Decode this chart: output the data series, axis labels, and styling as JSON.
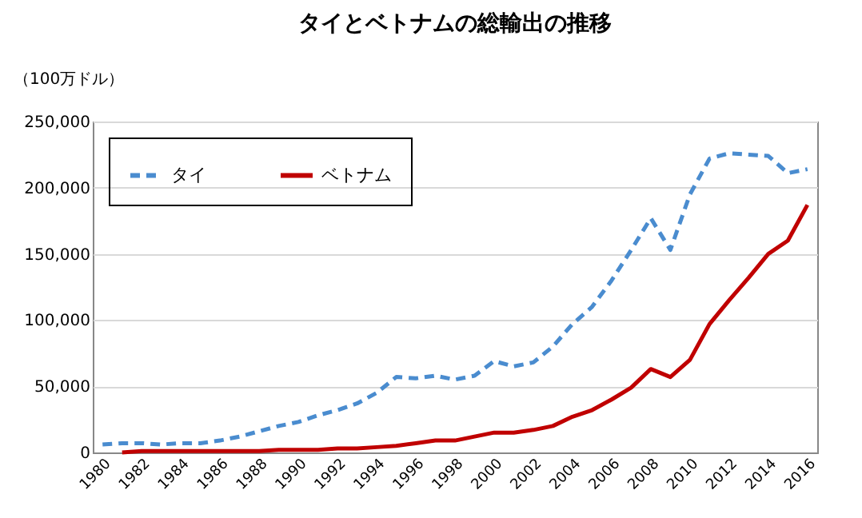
{
  "chart_data": {
    "type": "line",
    "title": "タイとベトナムの総輸出の推移",
    "ylabel": "（100万ドル）",
    "x": [
      1980,
      1981,
      1982,
      1983,
      1984,
      1985,
      1986,
      1987,
      1988,
      1989,
      1990,
      1991,
      1992,
      1993,
      1994,
      1995,
      1996,
      1997,
      1998,
      1999,
      2000,
      2001,
      2002,
      2003,
      2004,
      2005,
      2006,
      2007,
      2008,
      2009,
      2010,
      2011,
      2012,
      2013,
      2014,
      2015,
      2016
    ],
    "series": [
      {
        "name": "タイ",
        "color": "#4a8ccf",
        "line_style": "dashed",
        "values": [
          6000,
          7000,
          7000,
          6000,
          7000,
          7000,
          9000,
          12000,
          16000,
          20000,
          23000,
          28000,
          32000,
          37000,
          45000,
          57000,
          56000,
          58000,
          55000,
          58000,
          69000,
          65000,
          68000,
          80000,
          97000,
          110000,
          130000,
          153000,
          177000,
          153000,
          195000,
          222000,
          226000,
          225000,
          224000,
          211000,
          214000
        ]
      },
      {
        "name": "ベトナム",
        "color": "#c00000",
        "line_style": "solid",
        "values": [
          null,
          0,
          1000,
          1000,
          1000,
          1000,
          1000,
          1000,
          1000,
          2000,
          2000,
          2000,
          3000,
          3000,
          4000,
          5000,
          7000,
          9000,
          9000,
          12000,
          15000,
          15000,
          17000,
          20000,
          27000,
          32000,
          40000,
          49000,
          63000,
          57000,
          70000,
          97000,
          115000,
          132000,
          150000,
          160000,
          187000
        ]
      }
    ],
    "xlim": [
      1979.5,
      2016.5
    ],
    "xticks": [
      1980,
      1982,
      1984,
      1986,
      1988,
      1990,
      1992,
      1994,
      1996,
      1998,
      2000,
      2002,
      2004,
      2006,
      2008,
      2010,
      2012,
      2014,
      2016
    ],
    "ylim": [
      0,
      250000
    ],
    "yticks": [
      0,
      {
        "value": 50000,
        "label": "50,000"
      },
      {
        "value": 100000,
        "label": "100,000"
      },
      {
        "value": 150000,
        "label": "150,000"
      },
      {
        "value": 200000,
        "label": "200,000"
      },
      {
        "value": 250000,
        "label": "250,000"
      }
    ],
    "grid": "y",
    "legend": "top left"
  }
}
